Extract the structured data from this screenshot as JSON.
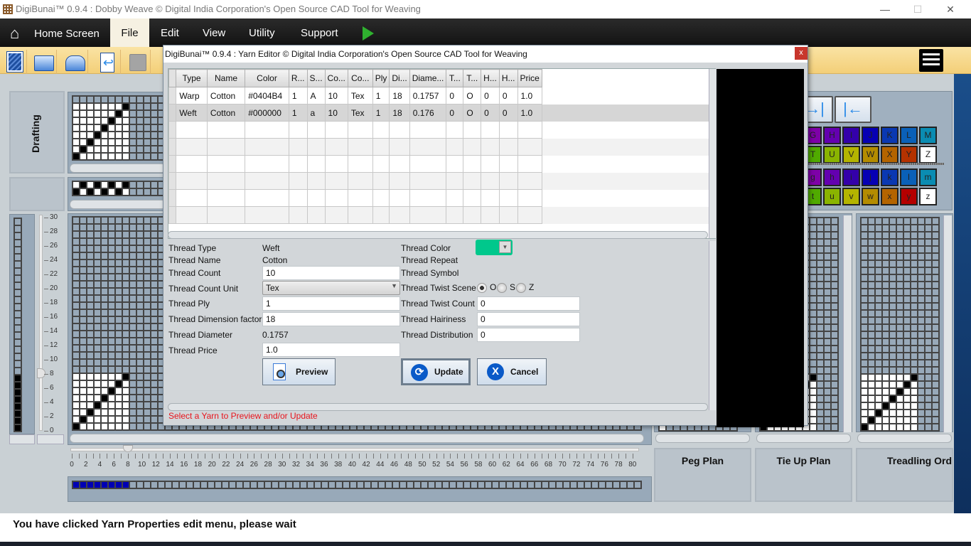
{
  "window": {
    "title": "DigiBunai™ 0.9.4 : Dobby Weave © Digital India Corporation's Open Source CAD Tool for Weaving",
    "minimize": "—",
    "maximize": "☐",
    "close": "✕"
  },
  "menu": {
    "home": "Home Screen",
    "items": [
      "File",
      "Edit",
      "View",
      "Utility",
      "Support"
    ]
  },
  "toolbar": {
    "icons": [
      "new-file-icon",
      "open-file-icon",
      "recent-file-icon",
      "import-icon",
      "save-icon"
    ],
    "menu_icon": "hamburger-menu-icon"
  },
  "left": {
    "drafting_label": "Drafting",
    "slider_ticks": [
      "30",
      "28",
      "26",
      "24",
      "22",
      "20",
      "18",
      "16",
      "14",
      "12",
      "10",
      "8",
      "6",
      "4",
      "2",
      "0"
    ],
    "slider_value": 8
  },
  "hslider": {
    "ticks": [
      "0",
      "2",
      "4",
      "6",
      "8",
      "10",
      "12",
      "14",
      "16",
      "18",
      "20",
      "22",
      "24",
      "26",
      "28",
      "30",
      "32",
      "34",
      "36",
      "38",
      "40",
      "42",
      "44",
      "46",
      "48",
      "50",
      "52",
      "54",
      "56",
      "58",
      "60",
      "62",
      "64",
      "66",
      "68",
      "70",
      "72",
      "74",
      "76",
      "78",
      "80"
    ],
    "value": 8
  },
  "right": {
    "peg_plan": "Peg Plan",
    "tie_up_plan": "Tie Up Plan",
    "treadling_order": "Treadling Ord",
    "nav_right": "→|",
    "nav_left": "|←",
    "palette_upper": [
      {
        "l": "G",
        "c": "#7e00a8"
      },
      {
        "l": "H",
        "c": "#6400b0"
      },
      {
        "l": "I",
        "c": "#3400aa"
      },
      {
        "l": "J",
        "c": "#0600b4"
      },
      {
        "l": "K",
        "c": "#0a38b2"
      },
      {
        "l": "L",
        "c": "#0a60b8"
      },
      {
        "l": "M",
        "c": "#0a8cb2"
      }
    ],
    "palette_upper2": [
      {
        "l": "T",
        "c": "#50aa00"
      },
      {
        "l": "U",
        "c": "#8ab400"
      },
      {
        "l": "V",
        "c": "#b4b400"
      },
      {
        "l": "W",
        "c": "#b48c00"
      },
      {
        "l": "X",
        "c": "#b46400"
      },
      {
        "l": "Y",
        "c": "#b43200"
      },
      {
        "l": "Z",
        "c": "#ffffff"
      }
    ],
    "palette_lower": [
      {
        "l": "g",
        "c": "#7e00a8"
      },
      {
        "l": "h",
        "c": "#6400b0"
      },
      {
        "l": "i",
        "c": "#3400aa"
      },
      {
        "l": "j",
        "c": "#0600b4"
      },
      {
        "l": "k",
        "c": "#0a38b2"
      },
      {
        "l": "l",
        "c": "#0a60b8"
      },
      {
        "l": "m",
        "c": "#0a8cb2"
      }
    ],
    "palette_lower2": [
      {
        "l": "t",
        "c": "#50aa00"
      },
      {
        "l": "u",
        "c": "#8ab400"
      },
      {
        "l": "v",
        "c": "#b4b400"
      },
      {
        "l": "w",
        "c": "#b48c00"
      },
      {
        "l": "x",
        "c": "#b46400"
      },
      {
        "l": "y",
        "c": "#b40000"
      },
      {
        "l": "z",
        "c": "#ffffff"
      }
    ]
  },
  "dialog": {
    "title": "DigiBunai™ 0.9.4 : Yarn Editor © Digital India Corporation's Open Source CAD Tool for Weaving",
    "close": "x",
    "columns": [
      "Type",
      "Name",
      "Color",
      "R...",
      "S...",
      "Co...",
      "Co...",
      "Ply",
      "Di...",
      "Diame...",
      "T...",
      "T...",
      "H...",
      "H...",
      "Price"
    ],
    "rows": [
      [
        "Warp",
        "Cotton",
        "#0404B4",
        "1",
        "A",
        "10",
        "Tex",
        "1",
        "18",
        "0.1757",
        "0",
        "O",
        "0",
        "0",
        "1.0"
      ],
      [
        "Weft",
        "Cotton",
        "#000000",
        "1",
        "a",
        "10",
        "Tex",
        "1",
        "18",
        "0.176",
        "0",
        "O",
        "0",
        "0",
        "1.0"
      ]
    ],
    "form": {
      "thread_type_label": "Thread Type",
      "thread_type": "Weft",
      "thread_name_label": "Thread Name",
      "thread_name": "Cotton",
      "thread_count_label": "Thread Count",
      "thread_count": "10",
      "count_unit_label": "Thread Count Unit",
      "count_unit": "Tex",
      "ply_label": "Thread Ply",
      "ply": "1",
      "dimension_label": "Thread Dimension factor",
      "dimension": "18",
      "diameter_label": "Thread Diameter",
      "diameter": "0.1757",
      "price_label": "Thread Price",
      "price": "1.0",
      "color_label": "Thread Color",
      "color": "#00c88c",
      "repeat_label": "Thread Repeat",
      "symbol_label": "Thread Symbol",
      "twist_scene_label": "Thread Twist Scene",
      "twist_options": [
        "O",
        "S",
        "Z"
      ],
      "twist_selected": "O",
      "twist_count_label": "Thread Twist Count",
      "twist_count": "0",
      "hairiness_label": "Thread Hairiness",
      "hairiness": "0",
      "distribution_label": "Thread Distribution",
      "distribution": "0"
    },
    "preview": "Preview",
    "update": "Update",
    "cancel": "Cancel",
    "status": "Select a Yarn to Preview and/or Update"
  },
  "status": "You have clicked Yarn Properties edit menu, please wait"
}
